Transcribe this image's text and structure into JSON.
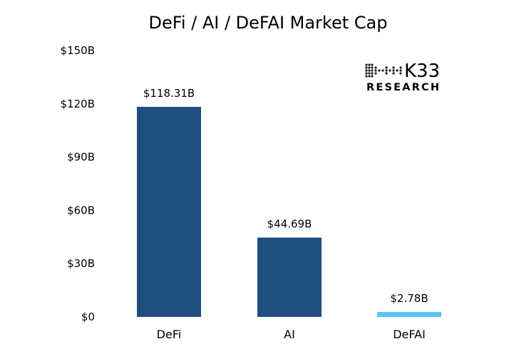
{
  "chart_data": {
    "type": "bar",
    "title": "DeFi / AI / DeFAI Market Cap",
    "categories": [
      "DeFi",
      "AI",
      "DeFAI"
    ],
    "values": [
      118.31,
      44.69,
      2.78
    ],
    "value_labels": [
      "$118.31B",
      "$44.69B",
      "$2.78B"
    ],
    "bar_colors": [
      "#1f4e7e",
      "#1f4e7e",
      "#5bc4ee"
    ],
    "yticks": [
      0,
      30,
      60,
      90,
      120,
      150
    ],
    "ytick_labels": [
      "$0",
      "$30B",
      "$60B",
      "$90B",
      "$120B",
      "$150B"
    ],
    "ylim": [
      0,
      150
    ],
    "xlabel": "",
    "ylabel": "",
    "grid": false,
    "legend": false
  },
  "logo": {
    "name": "K33",
    "subtitle": "RESEARCH"
  }
}
